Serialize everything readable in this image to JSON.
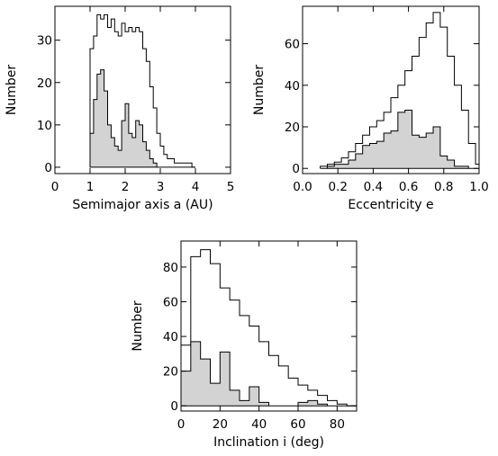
{
  "chart_data": [
    {
      "id": "semimajor",
      "type": "histogram",
      "xlabel": "Semimajor axis a (AU)",
      "ylabel": "Number",
      "xlim": [
        0,
        5
      ],
      "ylim": [
        -1.5,
        38
      ],
      "xticks": [
        0,
        1,
        2,
        3,
        4,
        5
      ],
      "xtick_labels": [
        "0",
        "1",
        "2",
        "3",
        "4",
        "5"
      ],
      "yticks": [
        0,
        10,
        20,
        30
      ],
      "ytick_labels": [
        "0",
        "10",
        "20",
        "30"
      ],
      "bin_start": 1.0,
      "bin_width": 0.1,
      "series": [
        {
          "role": "total",
          "values": [
            28,
            31,
            36,
            35,
            36,
            33,
            35,
            32,
            31,
            34,
            32,
            33,
            32,
            33,
            32,
            28,
            25,
            19,
            14,
            8,
            5,
            3,
            2,
            2,
            1,
            1,
            1,
            1,
            1,
            0
          ]
        },
        {
          "role": "subset",
          "values": [
            8,
            16,
            22,
            23,
            18,
            10,
            7,
            5,
            4,
            11,
            15,
            8,
            7,
            11,
            10,
            6,
            4,
            2,
            1,
            0,
            0,
            0,
            0,
            0,
            0,
            0,
            0,
            0,
            0,
            0
          ]
        }
      ]
    },
    {
      "id": "eccentricity",
      "type": "histogram",
      "xlabel": "Eccentricity e",
      "ylabel": "Number",
      "xlim": [
        0,
        1
      ],
      "ylim": [
        -2.5,
        78
      ],
      "xticks": [
        0,
        0.2,
        0.4,
        0.6,
        0.8,
        1.0
      ],
      "xtick_labels": [
        "0.0",
        "0.2",
        "0.4",
        "0.6",
        "0.8",
        "1.0"
      ],
      "yticks": [
        0,
        20,
        40,
        60
      ],
      "ytick_labels": [
        "0",
        "20",
        "40",
        "60"
      ],
      "bin_start": 0.1,
      "bin_width": 0.04,
      "series": [
        {
          "role": "total",
          "values": [
            1,
            2,
            3,
            5,
            8,
            12,
            16,
            20,
            23,
            27,
            34,
            40,
            47,
            54,
            63,
            70,
            75,
            68,
            54,
            40,
            28,
            12,
            2
          ]
        },
        {
          "role": "subset",
          "values": [
            0,
            1,
            2,
            2,
            4,
            7,
            11,
            12,
            13,
            17,
            18,
            27,
            28,
            16,
            15,
            17,
            20,
            6,
            4,
            1,
            1,
            0,
            0
          ]
        }
      ]
    },
    {
      "id": "inclination",
      "type": "histogram",
      "xlabel": "Inclination i (deg)",
      "ylabel": "Number",
      "xlim": [
        0,
        90
      ],
      "ylim": [
        -3,
        95
      ],
      "xticks": [
        0,
        20,
        40,
        60,
        80
      ],
      "xtick_labels": [
        "0",
        "20",
        "40",
        "60",
        "80"
      ],
      "yticks": [
        0,
        20,
        40,
        60,
        80
      ],
      "ytick_labels": [
        "0",
        "20",
        "40",
        "60",
        "80"
      ],
      "bin_start": 0,
      "bin_width": 5,
      "series": [
        {
          "role": "total",
          "values": [
            35,
            86,
            90,
            82,
            68,
            61,
            52,
            46,
            37,
            29,
            23,
            16,
            12,
            9,
            6,
            3,
            1,
            0
          ]
        },
        {
          "role": "subset",
          "values": [
            20,
            37,
            27,
            13,
            31,
            9,
            3,
            11,
            2,
            0,
            0,
            0,
            2,
            3,
            1,
            0,
            0,
            0
          ]
        }
      ]
    }
  ]
}
